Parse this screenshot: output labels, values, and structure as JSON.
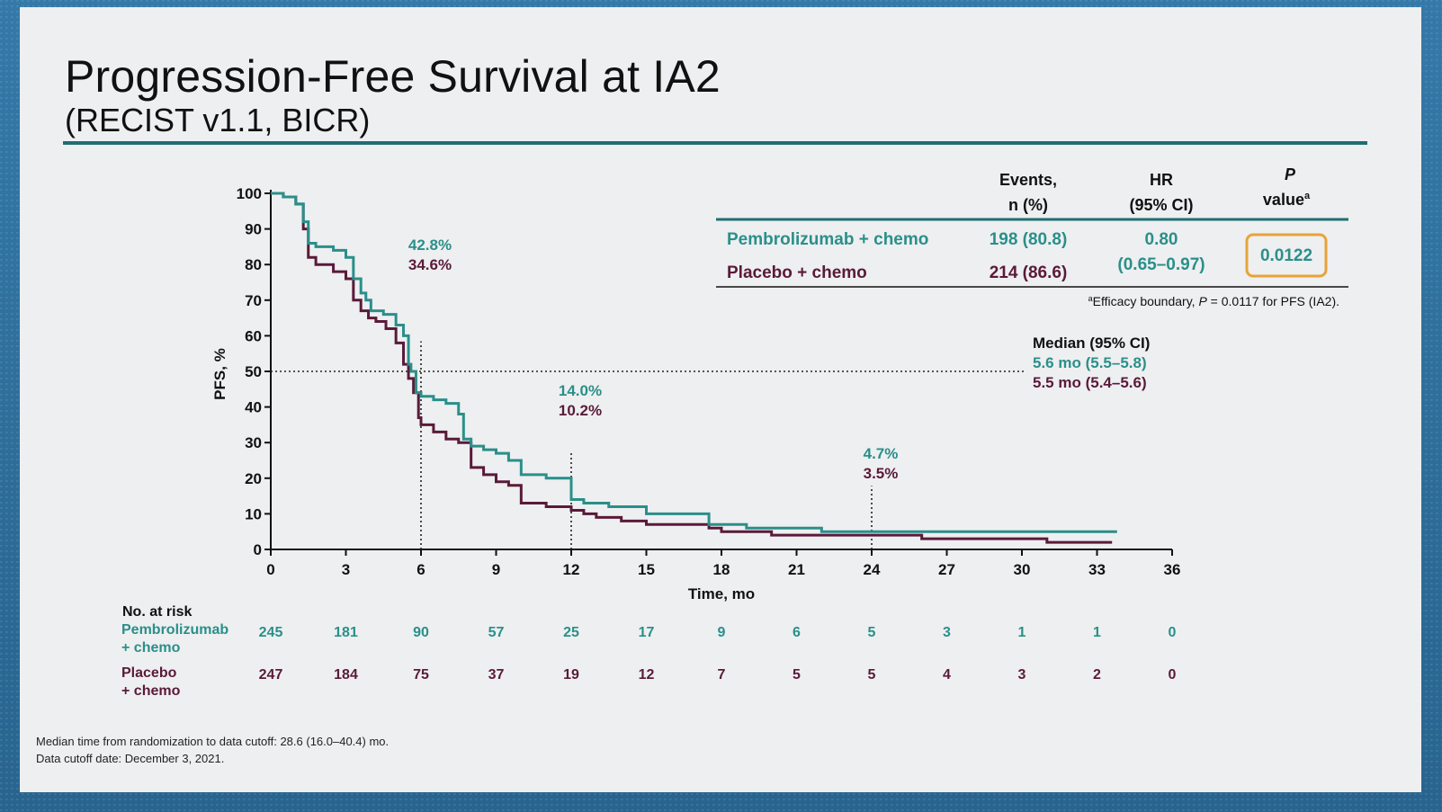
{
  "title": "Progression-Free Survival at IA2",
  "subtitle": "(RECIST v1.1, BICR)",
  "colors": {
    "pembro": "#2a8f8a",
    "placebo": "#5a1a3a",
    "accent_box": "#e8a33a",
    "rule": "#1f6e74"
  },
  "table": {
    "headers": {
      "events_1": "Events,",
      "events_2": "n (%)",
      "hr_1": "HR",
      "hr_2": "(95% CI)",
      "p_1": "P",
      "p_2": "value",
      "p_sup": "a"
    },
    "rows": [
      {
        "arm": "Pembrolizumab + chemo",
        "events": "198 (80.8)"
      },
      {
        "arm": "Placebo + chemo",
        "events": "214 (86.6)"
      }
    ],
    "hr_value": "0.80",
    "hr_ci": "(0.65–0.97)",
    "p_value": "0.0122",
    "footnote_sup": "a",
    "footnote_text_1": "Efficacy boundary, ",
    "footnote_p": "P",
    "footnote_text_2": " = 0.0117 for PFS (IA2)."
  },
  "median": {
    "heading": "Median (95% CI)",
    "pembro": "5.6 mo (5.5–5.8)",
    "placebo": "5.5 mo (5.4–5.6)"
  },
  "landmarks": [
    {
      "month": 6,
      "pembro": "42.8%",
      "placebo": "34.6%"
    },
    {
      "month": 12,
      "pembro": "14.0%",
      "placebo": "10.2%"
    },
    {
      "month": 24,
      "pembro": "4.7%",
      "placebo": "3.5%"
    }
  ],
  "risk_table": {
    "heading": "No. at risk",
    "pembro_label_1": "Pembrolizumab",
    "pembro_label_2": "+ chemo",
    "placebo_label_1": "Placebo",
    "placebo_label_2": "+ chemo",
    "pembro": [
      "245",
      "181",
      "90",
      "57",
      "25",
      "17",
      "9",
      "6",
      "5",
      "3",
      "1",
      "1",
      "0"
    ],
    "placebo": [
      "247",
      "184",
      "75",
      "37",
      "19",
      "12",
      "7",
      "5",
      "5",
      "4",
      "3",
      "2",
      "0"
    ]
  },
  "footnotes": [
    "Median time from randomization to data cutoff: 28.6 (16.0–40.4) mo.",
    "Data cutoff date: December 3, 2021."
  ],
  "chart_data": {
    "type": "line",
    "title": "",
    "xlabel": "Time, mo",
    "ylabel": "PFS, %",
    "xlim": [
      0,
      36
    ],
    "ylim": [
      0,
      100
    ],
    "xticks": [
      0,
      3,
      6,
      9,
      12,
      15,
      18,
      21,
      24,
      27,
      30,
      33,
      36
    ],
    "yticks": [
      0,
      10,
      20,
      30,
      40,
      50,
      60,
      70,
      80,
      90,
      100
    ],
    "reference_line_y": 50,
    "series": [
      {
        "name": "Pembrolizumab + chemo",
        "color": "#2a8f8a",
        "x": [
          0,
          0.5,
          1.0,
          1.3,
          1.5,
          1.8,
          2.5,
          3.0,
          3.3,
          3.6,
          3.8,
          4.0,
          4.5,
          5.0,
          5.3,
          5.5,
          5.6,
          5.8,
          6.0,
          6.5,
          7.0,
          7.5,
          7.7,
          8.0,
          8.5,
          9.0,
          9.5,
          10.0,
          11.0,
          12.0,
          12.5,
          13.5,
          14.5,
          15.0,
          16.0,
          17.0,
          17.5,
          18.0,
          19.0,
          20.0,
          21.0,
          22.0,
          24.0,
          26.0,
          28.0,
          30.0,
          32.0,
          33.0,
          33.8
        ],
        "y": [
          100,
          99,
          97,
          92,
          86,
          85,
          84,
          82,
          76,
          72,
          70,
          67,
          66,
          63,
          60,
          52,
          50,
          44,
          43,
          42,
          41,
          38,
          31,
          29,
          28,
          27,
          25,
          21,
          20,
          14,
          13,
          12,
          12,
          10,
          10,
          10,
          7,
          7,
          6,
          6,
          6,
          5,
          5,
          5,
          5,
          5,
          5,
          5,
          5
        ]
      },
      {
        "name": "Placebo + chemo",
        "color": "#5a1a3a",
        "x": [
          0,
          0.5,
          1.0,
          1.3,
          1.5,
          1.8,
          2.5,
          3.0,
          3.3,
          3.6,
          3.9,
          4.2,
          4.6,
          5.0,
          5.3,
          5.5,
          5.7,
          5.9,
          6.0,
          6.5,
          7.0,
          7.5,
          8.0,
          8.5,
          9.0,
          9.5,
          10.0,
          11.0,
          12.0,
          12.5,
          13.0,
          14.0,
          15.0,
          16.0,
          17.0,
          17.5,
          18.0,
          19.0,
          20.0,
          21.0,
          22.0,
          24.0,
          26.0,
          28.0,
          30.0,
          31.0,
          32.0,
          33.0,
          33.6
        ],
        "y": [
          100,
          99,
          97,
          90,
          82,
          80,
          78,
          76,
          70,
          67,
          65,
          64,
          62,
          58,
          52,
          48,
          44,
          37,
          35,
          33,
          31,
          30,
          23,
          21,
          19,
          18,
          13,
          12,
          11,
          10,
          9,
          8,
          7,
          7,
          7,
          6,
          5,
          5,
          4,
          4,
          4,
          4,
          3,
          3,
          3,
          2,
          2,
          2,
          2
        ]
      }
    ]
  }
}
